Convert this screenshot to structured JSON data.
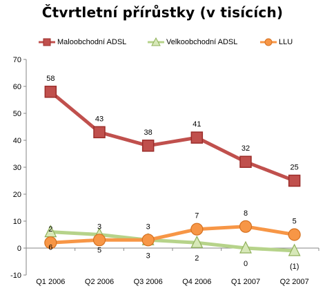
{
  "chart_data": {
    "type": "line",
    "title": "Čtvrtletní přírůstky  (v tisících)",
    "categories": [
      "Q1 2006",
      "Q2 2006",
      "Q3 2006",
      "Q4 2006",
      "Q1 2007",
      "Q2 2007"
    ],
    "ylim": [
      -10,
      70
    ],
    "yticks": [
      -10,
      0,
      10,
      20,
      30,
      40,
      50,
      60,
      70
    ],
    "grid": false,
    "legend_position": "top",
    "series": [
      {
        "name": "Maloobchodní ADSL",
        "color": "#c0504d",
        "marker": "square",
        "values": [
          58,
          43,
          38,
          41,
          32,
          25
        ],
        "labels": [
          "58",
          "43",
          "38",
          "41",
          "32",
          "25"
        ]
      },
      {
        "name": "Velkoobchodní ADSL",
        "color": "#b6d38a",
        "marker": "triangle",
        "values": [
          6,
          5,
          3,
          2,
          0,
          -1
        ],
        "labels": [
          "6",
          "5",
          "3",
          "2",
          "0",
          "(1)"
        ]
      },
      {
        "name": "LLU",
        "color": "#f79646",
        "marker": "circle",
        "values": [
          2,
          3,
          3,
          7,
          8,
          5
        ],
        "labels": [
          "2",
          "3",
          "3",
          "7",
          "8",
          "5"
        ]
      }
    ]
  }
}
